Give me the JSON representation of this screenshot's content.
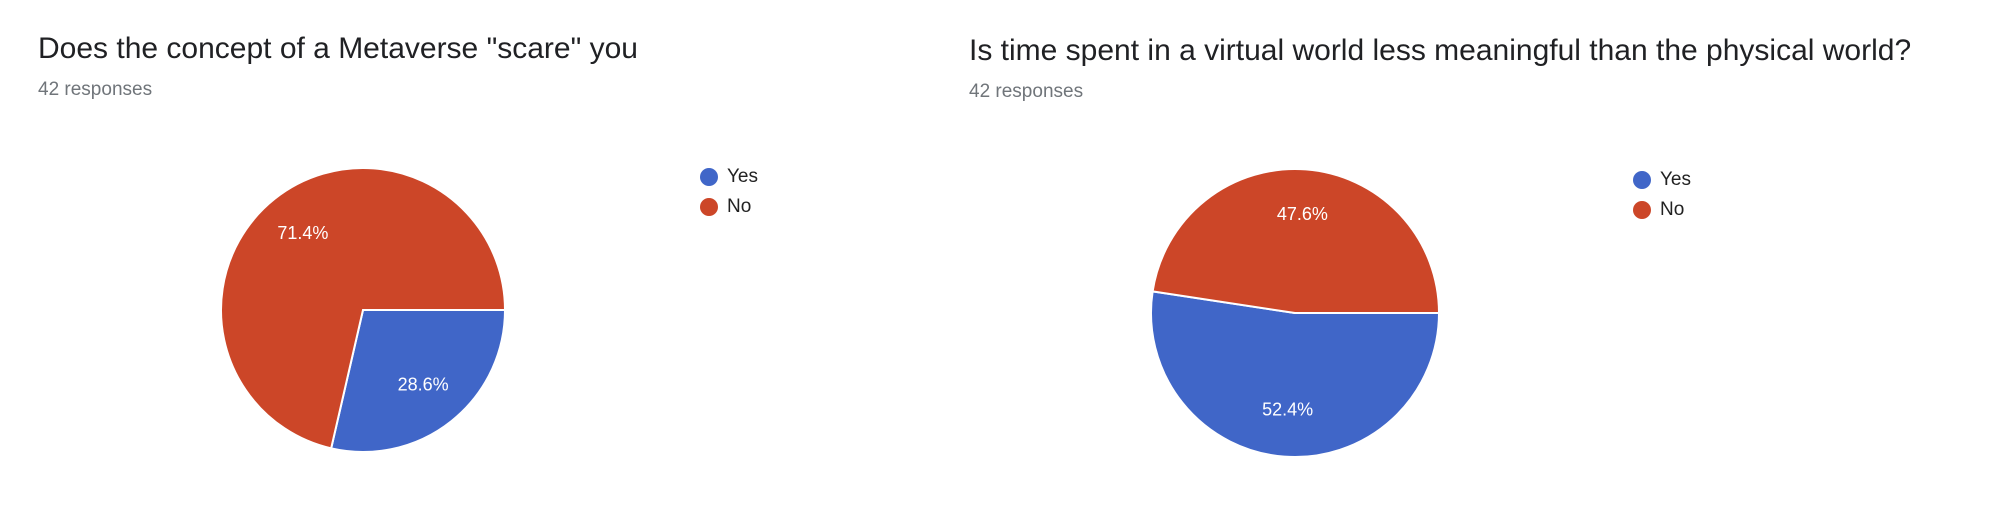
{
  "chart_data": [
    {
      "type": "pie",
      "title": "Does the concept of a Metaverse \"scare\" you",
      "subtitle": "42 responses",
      "categories": [
        "Yes",
        "No"
      ],
      "values": [
        28.6,
        71.4
      ],
      "value_labels": [
        "28.6%",
        "71.4%"
      ],
      "colors": [
        "#4066c8",
        "#cc4628"
      ],
      "legend": "right"
    },
    {
      "type": "pie",
      "title": "Is time spent in a virtual world less meaningful than the physical world?",
      "subtitle": "42 responses",
      "categories": [
        "Yes",
        "No"
      ],
      "values": [
        52.4,
        47.6
      ],
      "value_labels": [
        "52.4%",
        "47.6%"
      ],
      "colors": [
        "#4066c8",
        "#cc4628"
      ],
      "legend": "right"
    }
  ]
}
